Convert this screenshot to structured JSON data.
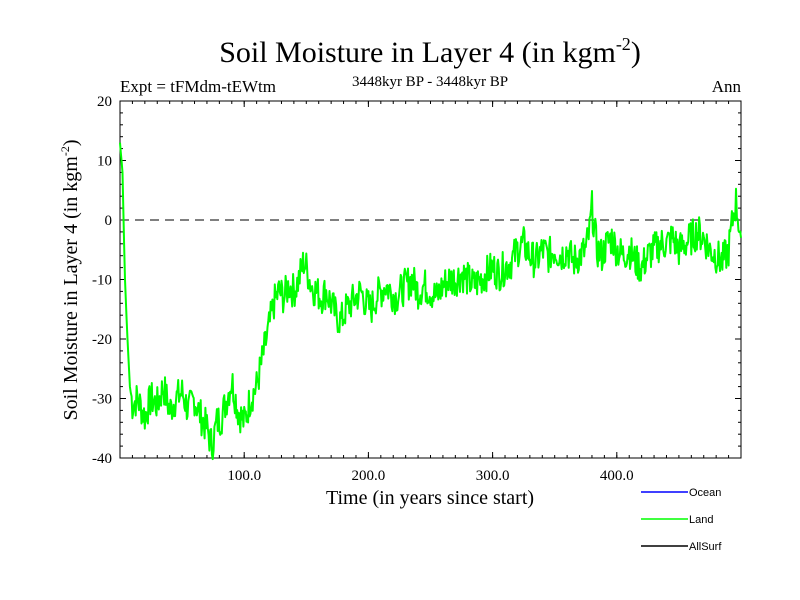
{
  "chart_data": {
    "type": "line",
    "title": "Soil Moisture in Layer 4 (in kgm",
    "title_sup": "-2",
    "title_close": ")",
    "subtitle_left": "Expt = tFMdm-tEWtm",
    "subtitle_center": "3448kyr BP - 3448kyr BP",
    "subtitle_right": "Ann",
    "xlabel": "Time (in years since start)",
    "ylabel": "Soil Moisture in Layer 4 (in kgm",
    "ylabel_sup": "-2",
    "ylabel_close": ")",
    "xlim": [
      0,
      500
    ],
    "ylim": [
      -40,
      20
    ],
    "x_ticks": [
      100,
      200,
      300,
      400
    ],
    "x_tick_labels": [
      "100.0",
      "200.0",
      "300.0",
      "400.0"
    ],
    "y_ticks": [
      -40,
      -30,
      -20,
      -10,
      0,
      10,
      20
    ],
    "y_tick_labels": [
      "-40",
      "-30",
      "-20",
      "-10",
      "0",
      "10",
      "20"
    ],
    "reference_line": 0,
    "series": [
      {
        "name": "Land",
        "color": "#00ff00",
        "keypoints": [
          [
            0,
            13
          ],
          [
            2,
            8
          ],
          [
            4,
            -10
          ],
          [
            6,
            -20
          ],
          [
            8,
            -28
          ],
          [
            10,
            -31
          ],
          [
            14,
            -30
          ],
          [
            20,
            -33
          ],
          [
            25,
            -30
          ],
          [
            30,
            -31
          ],
          [
            35,
            -28
          ],
          [
            40,
            -32
          ],
          [
            45,
            -30
          ],
          [
            50,
            -29
          ],
          [
            55,
            -32
          ],
          [
            60,
            -30
          ],
          [
            65,
            -33
          ],
          [
            70,
            -35
          ],
          [
            74,
            -38
          ],
          [
            78,
            -34
          ],
          [
            82,
            -33
          ],
          [
            86,
            -30
          ],
          [
            90,
            -27
          ],
          [
            95,
            -32
          ],
          [
            100,
            -34
          ],
          [
            105,
            -30
          ],
          [
            110,
            -28
          ],
          [
            115,
            -23
          ],
          [
            120,
            -18
          ],
          [
            124,
            -14
          ],
          [
            128,
            -12
          ],
          [
            132,
            -13
          ],
          [
            136,
            -11
          ],
          [
            140,
            -12
          ],
          [
            144,
            -10
          ],
          [
            148,
            -7
          ],
          [
            150,
            -8
          ],
          [
            154,
            -11
          ],
          [
            158,
            -12
          ],
          [
            162,
            -13
          ],
          [
            166,
            -12
          ],
          [
            170,
            -14
          ],
          [
            174,
            -16
          ],
          [
            178,
            -17
          ],
          [
            182,
            -15
          ],
          [
            186,
            -14
          ],
          [
            190,
            -13
          ],
          [
            194,
            -12
          ],
          [
            198,
            -14
          ],
          [
            202,
            -15
          ],
          [
            206,
            -13
          ],
          [
            210,
            -12
          ],
          [
            214,
            -11
          ],
          [
            218,
            -12
          ],
          [
            222,
            -13
          ],
          [
            226,
            -12
          ],
          [
            230,
            -11
          ],
          [
            235,
            -10
          ],
          [
            240,
            -12
          ],
          [
            245,
            -11
          ],
          [
            250,
            -12
          ],
          [
            255,
            -13
          ],
          [
            260,
            -11
          ],
          [
            265,
            -10
          ],
          [
            270,
            -10
          ],
          [
            275,
            -9
          ],
          [
            280,
            -10
          ],
          [
            285,
            -11
          ],
          [
            290,
            -10
          ],
          [
            295,
            -9
          ],
          [
            300,
            -8
          ],
          [
            305,
            -9
          ],
          [
            310,
            -8
          ],
          [
            315,
            -7
          ],
          [
            320,
            -5
          ],
          [
            325,
            -4
          ],
          [
            330,
            -6
          ],
          [
            335,
            -7
          ],
          [
            340,
            -5
          ],
          [
            345,
            -6
          ],
          [
            350,
            -5
          ],
          [
            355,
            -6
          ],
          [
            360,
            -5
          ],
          [
            365,
            -7
          ],
          [
            370,
            -6
          ],
          [
            375,
            -5
          ],
          [
            378,
            -2
          ],
          [
            380,
            2
          ],
          [
            384,
            -5
          ],
          [
            388,
            -6
          ],
          [
            392,
            -4
          ],
          [
            396,
            -3
          ],
          [
            400,
            -5
          ],
          [
            405,
            -6
          ],
          [
            410,
            -5
          ],
          [
            415,
            -7
          ],
          [
            420,
            -8
          ],
          [
            425,
            -6
          ],
          [
            430,
            -5
          ],
          [
            435,
            -4
          ],
          [
            440,
            -4
          ],
          [
            445,
            -3
          ],
          [
            450,
            -5
          ],
          [
            455,
            -4
          ],
          [
            460,
            -3
          ],
          [
            465,
            -2
          ],
          [
            470,
            -3
          ],
          [
            475,
            -5
          ],
          [
            480,
            -6
          ],
          [
            485,
            -7
          ],
          [
            490,
            -5
          ],
          [
            494,
            1
          ],
          [
            496,
            3
          ],
          [
            500,
            -3
          ]
        ]
      }
    ],
    "legend": [
      {
        "name": "Ocean",
        "color": "#0000ff"
      },
      {
        "name": "Land",
        "color": "#00ff00"
      },
      {
        "name": "AllSurf",
        "color": "#000000"
      }
    ]
  }
}
